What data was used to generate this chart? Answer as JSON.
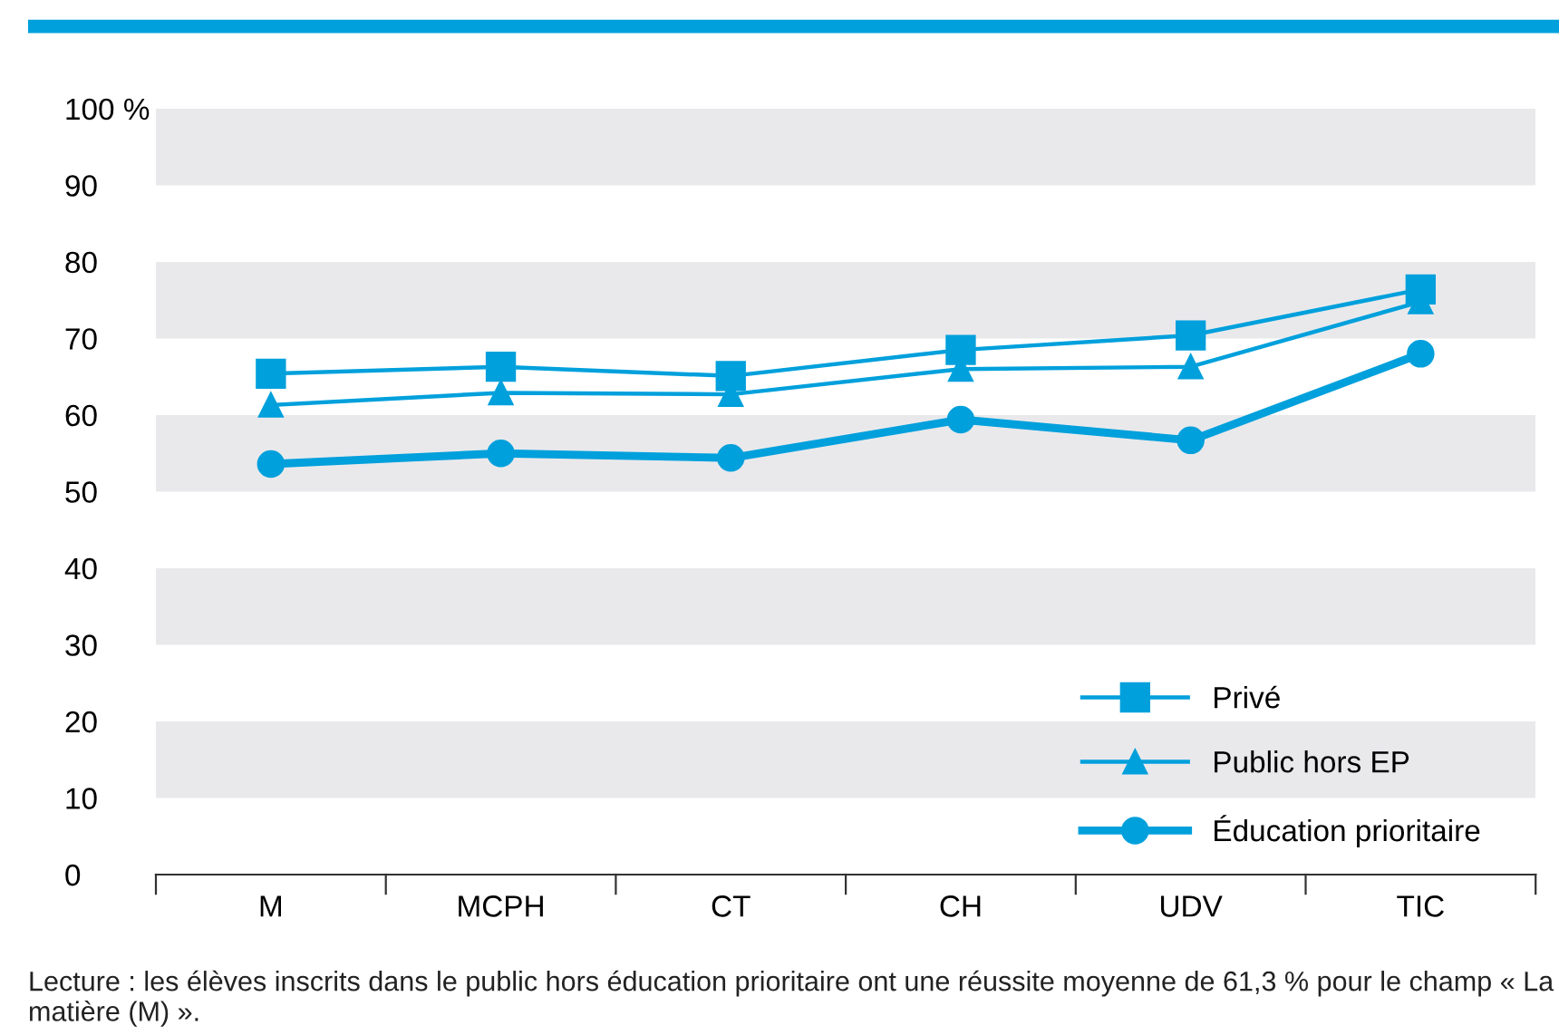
{
  "chart_data": {
    "type": "line",
    "categories": [
      "M",
      "MCPH",
      "CT",
      "CH",
      "UDV",
      "TIC"
    ],
    "series": [
      {
        "name": "Privé",
        "color": "#00a0dc",
        "marker": "square",
        "values": [
          65.4,
          66.3,
          65.1,
          68.5,
          70.4,
          76.4
        ]
      },
      {
        "name": "Public hors EP",
        "color": "#00a0dc",
        "marker": "triangle",
        "values": [
          61.3,
          62.9,
          62.7,
          66.0,
          66.3,
          74.8
        ]
      },
      {
        "name": "Éducation prioritaire",
        "color": "#00a0dc",
        "marker": "circle",
        "values": [
          53.6,
          55.0,
          54.4,
          59.4,
          56.7,
          68.0
        ]
      }
    ],
    "ylim": [
      0,
      100
    ],
    "yticks": [
      0,
      10,
      20,
      30,
      40,
      50,
      60,
      70,
      80,
      90,
      {
        "value": 100,
        "label": "100 %"
      }
    ],
    "legend": "bottom right",
    "line_style": "solid",
    "annotations": [
      "Lecture : les élèves inscrits dans le public hors éducation prioritaire ont une réussite moyenne de 61,3 % pour le champ « La matière (M) »."
    ]
  }
}
